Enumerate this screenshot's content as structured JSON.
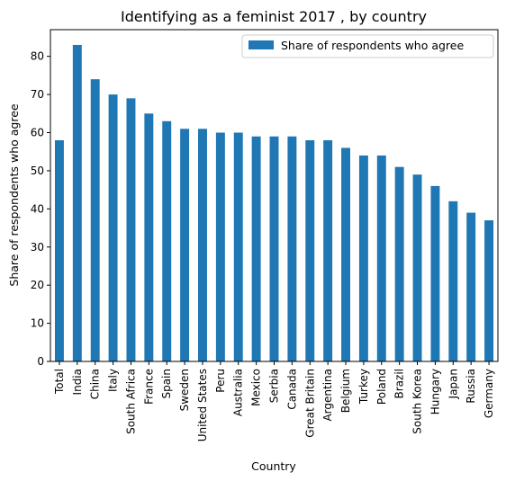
{
  "chart_data": {
    "type": "bar",
    "title": "Identifying as a feminist 2017 , by country",
    "xlabel": "Country",
    "ylabel": "Share of respondents who agree",
    "ylim": [
      0,
      87
    ],
    "yticks": [
      0,
      10,
      20,
      30,
      40,
      50,
      60,
      70,
      80
    ],
    "grid": false,
    "legend_position": "top-right",
    "bar_color": "#1f77b4",
    "categories": [
      "Total",
      "India",
      "China",
      "Italy",
      "South Africa",
      "France",
      "Spain",
      "Sweden",
      "United States",
      "Peru",
      "Australia",
      "Mexico",
      "Serbia",
      "Canada",
      "Great Britain",
      "Argentina",
      "Belgium",
      "Turkey",
      "Poland",
      "Brazil",
      "South Korea",
      "Hungary",
      "Japan",
      "Russia",
      "Germany"
    ],
    "series": [
      {
        "name": "Share of respondents who agree",
        "values": [
          58,
          83,
          74,
          70,
          69,
          65,
          63,
          61,
          61,
          60,
          60,
          59,
          59,
          59,
          58,
          58,
          56,
          54,
          54,
          51,
          49,
          46,
          42,
          39,
          37
        ]
      }
    ]
  }
}
